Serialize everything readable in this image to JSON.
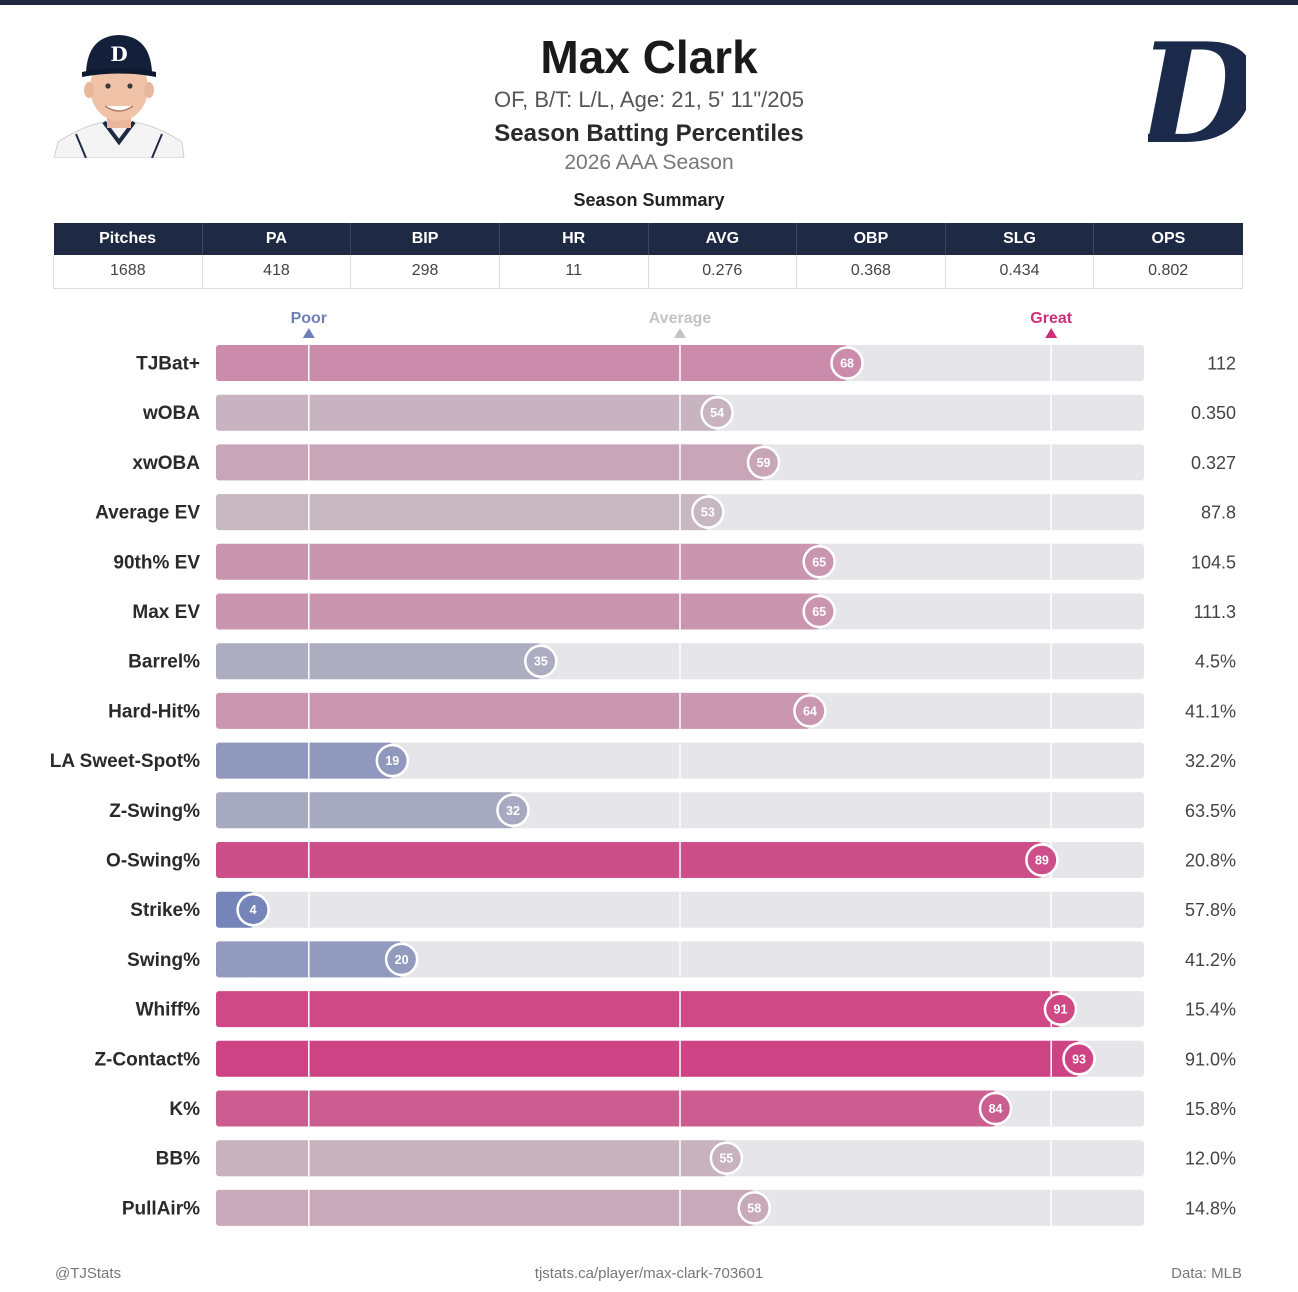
{
  "player": {
    "name": "Max Clark",
    "bio": "OF, B/T: L/L, Age: 21, 5' 11\"/205",
    "subtitle": "Season Batting Percentiles",
    "season": "2026 AAA Season",
    "team_logo_letter": "D",
    "cap_letter": "D"
  },
  "summary": {
    "label": "Season Summary",
    "headers": [
      "Pitches",
      "PA",
      "BIP",
      "HR",
      "AVG",
      "OBP",
      "SLG",
      "OPS"
    ],
    "values": [
      "1688",
      "418",
      "298",
      "11",
      "0.276",
      "0.368",
      "0.434",
      "0.802"
    ]
  },
  "colors": {
    "navy": "#1e2a44",
    "poor": "#6f80b8",
    "average": "#c7c0c6",
    "great": "#cf2f78",
    "track": "#e6e6ea"
  },
  "chart_data": {
    "type": "bar",
    "orientation": "horizontal",
    "xlim": [
      0,
      100
    ],
    "markers": [
      {
        "label": "Poor",
        "x": 10
      },
      {
        "label": "Average",
        "x": 50
      },
      {
        "label": "Great",
        "x": 90
      }
    ],
    "categories": [
      "TJBat+",
      "wOBA",
      "xwOBA",
      "Average EV",
      "90th% EV",
      "Max EV",
      "Barrel%",
      "Hard-Hit%",
      "LA Sweet-Spot%",
      "Z-Swing%",
      "O-Swing%",
      "Strike%",
      "Swing%",
      "Whiff%",
      "Z-Contact%",
      "K%",
      "BB%",
      "PullAir%"
    ],
    "percentiles": [
      68,
      54,
      59,
      53,
      65,
      65,
      35,
      64,
      19,
      32,
      89,
      4,
      20,
      91,
      93,
      84,
      55,
      58
    ],
    "stat_values": [
      "112",
      "0.350",
      "0.327",
      "87.8",
      "104.5",
      "111.3",
      "4.5%",
      "41.1%",
      "32.2%",
      "63.5%",
      "20.8%",
      "57.8%",
      "41.2%",
      "15.4%",
      "91.0%",
      "15.8%",
      "12.0%",
      "14.8%"
    ]
  },
  "footer": {
    "left": "@TJStats",
    "center": "tjstats.ca/player/max-clark-703601",
    "right": "Data: MLB"
  }
}
